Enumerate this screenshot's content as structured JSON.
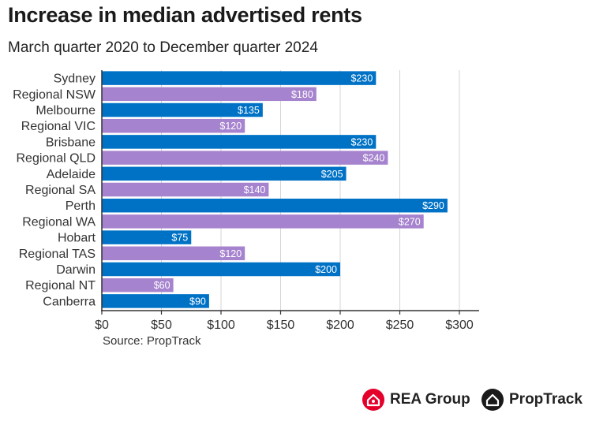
{
  "header": {
    "title": "Increase in median advertised rents",
    "subtitle": "March quarter 2020 to December quarter 2024"
  },
  "source": "Source: PropTrack",
  "logos": {
    "rea": "REA Group",
    "proptrack": "PropTrack"
  },
  "colors": {
    "metro": "#0072C6",
    "regional": "#A683CE",
    "grid": "#d4d4d4",
    "axis": "#333333",
    "rea": "#E4002B"
  },
  "chart_data": {
    "type": "bar",
    "orientation": "horizontal",
    "title": "Increase in median advertised rents",
    "subtitle": "March quarter 2020 to December quarter 2024",
    "xlabel": "",
    "ylabel": "",
    "xlim": [
      0,
      310
    ],
    "xticks": [
      0,
      50,
      100,
      150,
      200,
      250,
      300
    ],
    "xtick_labels": [
      "$0",
      "$50",
      "$100",
      "$150",
      "$200",
      "$250",
      "$300"
    ],
    "categories": [
      "Sydney",
      "Regional NSW",
      "Melbourne",
      "Regional VIC",
      "Brisbane",
      "Regional QLD",
      "Adelaide",
      "Regional SA",
      "Perth",
      "Regional WA",
      "Hobart",
      "Regional TAS",
      "Darwin",
      "Regional NT",
      "Canberra"
    ],
    "values": [
      230,
      180,
      135,
      120,
      230,
      240,
      205,
      140,
      290,
      270,
      75,
      120,
      200,
      60,
      90
    ],
    "value_labels": [
      "$230",
      "$180",
      "$135",
      "$120",
      "$230",
      "$240",
      "$205",
      "$140",
      "$290",
      "$270",
      "$75",
      "$120",
      "$200",
      "$60",
      "$90"
    ],
    "groups": [
      "metro",
      "regional",
      "metro",
      "regional",
      "metro",
      "regional",
      "metro",
      "regional",
      "metro",
      "regional",
      "metro",
      "regional",
      "metro",
      "regional",
      "metro"
    ],
    "grid": true
  }
}
